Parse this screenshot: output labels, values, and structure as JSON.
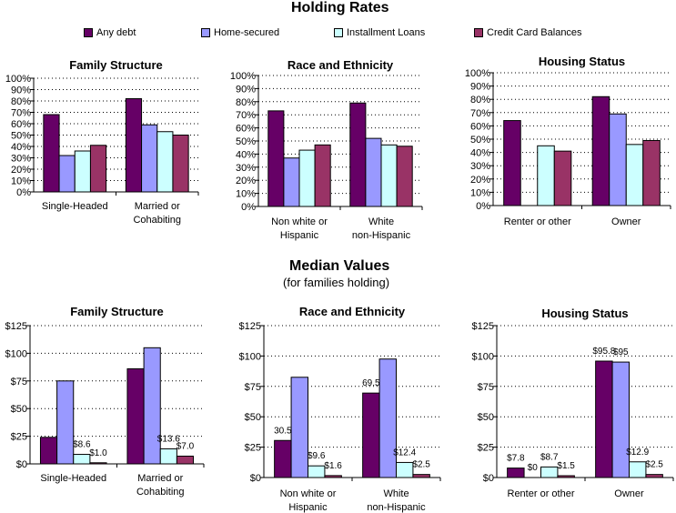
{
  "sections": {
    "holding_title": "Holding Rates",
    "median_title": "Median Values",
    "median_subtitle": "(for families holding)"
  },
  "legend": [
    {
      "label": "Any debt",
      "color": "#660066"
    },
    {
      "label": "Home-secured",
      "color": "#9999FF"
    },
    {
      "label": "Installment Loans",
      "color": "#CCFFFF"
    },
    {
      "label": "Credit Card Balances",
      "color": "#993366"
    }
  ],
  "chart_data": [
    {
      "type": "bar",
      "title": "Family Structure",
      "categories": [
        "Single-Headed",
        "Married or Cohabiting"
      ],
      "yticks": [
        "0%",
        "10%",
        "20%",
        "30%",
        "40%",
        "50%",
        "60%",
        "70%",
        "80%",
        "90%",
        "100%"
      ],
      "ylim": [
        0,
        100
      ],
      "grid": true,
      "series": [
        {
          "name": "Any debt",
          "values": [
            68,
            82
          ]
        },
        {
          "name": "Home-secured",
          "values": [
            32,
            59
          ]
        },
        {
          "name": "Installment Loans",
          "values": [
            36,
            53
          ]
        },
        {
          "name": "Credit Card Balances",
          "values": [
            41,
            50
          ]
        }
      ],
      "data_labels": [
        [
          "",
          ""
        ],
        [
          "",
          ""
        ],
        [
          "",
          ""
        ],
        [
          "",
          ""
        ]
      ]
    },
    {
      "type": "bar",
      "title": "Race and Ethnicity",
      "categories": [
        "Non white or Hispanic",
        "White non-Hispanic"
      ],
      "yticks": [
        "0%",
        "10%",
        "20%",
        "30%",
        "40%",
        "50%",
        "60%",
        "70%",
        "80%",
        "90%",
        "100%"
      ],
      "ylim": [
        0,
        100
      ],
      "grid": true,
      "series": [
        {
          "name": "Any debt",
          "values": [
            73,
            79
          ]
        },
        {
          "name": "Home-secured",
          "values": [
            37,
            52
          ]
        },
        {
          "name": "Installment Loans",
          "values": [
            43,
            47
          ]
        },
        {
          "name": "Credit Card Balances",
          "values": [
            47,
            46
          ]
        }
      ],
      "data_labels": [
        [
          "",
          ""
        ],
        [
          "",
          ""
        ],
        [
          "",
          ""
        ],
        [
          "",
          ""
        ]
      ]
    },
    {
      "type": "bar",
      "title": "Housing Status",
      "categories": [
        "Renter or other",
        "Owner"
      ],
      "yticks": [
        "0%",
        "10%",
        "20%",
        "30%",
        "40%",
        "50%",
        "60%",
        "70%",
        "80%",
        "90%",
        "100%"
      ],
      "ylim": [
        0,
        100
      ],
      "grid": true,
      "series": [
        {
          "name": "Any debt",
          "values": [
            64,
            82
          ]
        },
        {
          "name": "Home-secured",
          "values": [
            0,
            69
          ]
        },
        {
          "name": "Installment Loans",
          "values": [
            45,
            46
          ]
        },
        {
          "name": "Credit Card Balances",
          "values": [
            41,
            49
          ]
        }
      ],
      "data_labels": [
        [
          "",
          ""
        ],
        [
          "",
          ""
        ],
        [
          "",
          ""
        ],
        [
          "",
          ""
        ]
      ]
    },
    {
      "type": "bar",
      "title": "Family Structure",
      "categories": [
        "Single-Headed",
        "Married or Cohabiting"
      ],
      "yticks": [
        "$0",
        "$25",
        "$50",
        "$75",
        "$100",
        "$125"
      ],
      "ylim": [
        0,
        125
      ],
      "grid": true,
      "series": [
        {
          "name": "Any debt",
          "values": [
            24,
            86
          ]
        },
        {
          "name": "Home-secured",
          "values": [
            75,
            105
          ]
        },
        {
          "name": "Installment Loans",
          "values": [
            8.6,
            13.6
          ]
        },
        {
          "name": "Credit Card Balances",
          "values": [
            1.0,
            7.0
          ]
        }
      ],
      "data_labels": [
        [
          "",
          ""
        ],
        [
          "",
          ""
        ],
        [
          "$8.6",
          "$13.6"
        ],
        [
          "$1.0",
          "$7.0"
        ]
      ]
    },
    {
      "type": "bar",
      "title": "Race and Ethnicity",
      "categories": [
        "Non white or Hispanic",
        "White non-Hispanic"
      ],
      "yticks": [
        "$0",
        "$25",
        "$50",
        "$75",
        "$100",
        "$125"
      ],
      "ylim": [
        0,
        125
      ],
      "grid": true,
      "series": [
        {
          "name": "Any debt",
          "values": [
            30.5,
            69.5
          ]
        },
        {
          "name": "Home-secured",
          "values": [
            82.5,
            97.5
          ]
        },
        {
          "name": "Installment Loans",
          "values": [
            9.6,
            12.4
          ]
        },
        {
          "name": "Credit Card Balances",
          "values": [
            1.6,
            2.5
          ]
        }
      ],
      "data_labels": [
        [
          "30.5",
          "69.5"
        ],
        [
          "",
          ""
        ],
        [
          "$9.6",
          "$12.4"
        ],
        [
          "$1.6",
          "$2.5"
        ]
      ]
    },
    {
      "type": "bar",
      "title": "Housing Status",
      "categories": [
        "Renter or other",
        "Owner"
      ],
      "yticks": [
        "$0",
        "$25",
        "$50",
        "$75",
        "$100",
        "$125"
      ],
      "ylim": [
        0,
        125
      ],
      "grid": true,
      "series": [
        {
          "name": "Any debt",
          "values": [
            7.8,
            95.8
          ]
        },
        {
          "name": "Home-secured",
          "values": [
            0,
            95
          ]
        },
        {
          "name": "Installment Loans",
          "values": [
            8.7,
            12.9
          ]
        },
        {
          "name": "Credit Card Balances",
          "values": [
            1.5,
            2.5
          ]
        }
      ],
      "data_labels": [
        [
          "$7.8",
          "$95.8"
        ],
        [
          "$0",
          "$95"
        ],
        [
          "$8.7",
          "$12.9"
        ],
        [
          "$1.5",
          "$2.5"
        ]
      ]
    }
  ]
}
